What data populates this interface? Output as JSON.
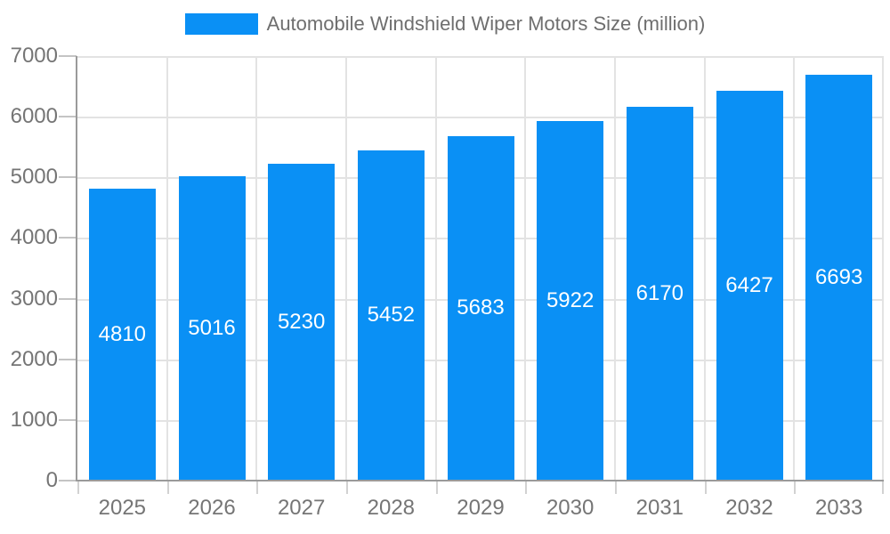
{
  "chart_data": {
    "type": "bar",
    "title": "Automobile Windshield Wiper Motors Size (million)",
    "categories": [
      "2025",
      "2026",
      "2027",
      "2028",
      "2029",
      "2030",
      "2031",
      "2032",
      "2033"
    ],
    "series": [
      {
        "name": "Automobile Windshield Wiper Motors Size (million)",
        "values": [
          4810,
          5016,
          5230,
          5452,
          5683,
          5922,
          6170,
          6427,
          6693
        ]
      }
    ],
    "xlabel": "",
    "ylabel": "",
    "ylim": [
      0,
      7000
    ],
    "ytick_step": 1000,
    "yticks": [
      0,
      1000,
      2000,
      3000,
      4000,
      5000,
      6000,
      7000
    ],
    "grid": true,
    "legend_position": "top",
    "bar_labels_inside": true,
    "colors": {
      "bar": "#0a90f5",
      "bar_label": "#ffffff",
      "axis_line": "#9a9a9a",
      "grid_line": "#e3e3e3",
      "y_tick": "#c4c4c4",
      "x_tick": "#d2d2d2",
      "axis_text": "#757575",
      "legend_text": "#6e6e6e",
      "background": "#ffffff"
    }
  },
  "legend": {
    "label": "Automobile Windshield Wiper Motors Size (million)"
  }
}
